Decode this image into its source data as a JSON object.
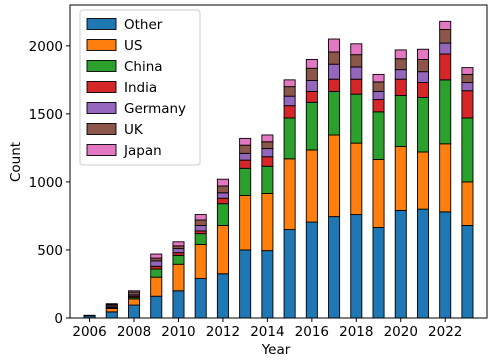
{
  "chart_data": {
    "type": "bar",
    "stacked": true,
    "xlabel": "Year",
    "ylabel": "Count",
    "ylim": [
      0,
      2300
    ],
    "yticks": [
      0,
      500,
      1000,
      1500,
      2000
    ],
    "xticks": [
      2006,
      2008,
      2010,
      2012,
      2014,
      2016,
      2018,
      2020,
      2022
    ],
    "x": [
      2006,
      2007,
      2008,
      2009,
      2010,
      2011,
      2012,
      2013,
      2014,
      2015,
      2016,
      2017,
      2018,
      2019,
      2020,
      2021,
      2022,
      2023
    ],
    "legend_position": "top-left",
    "series": [
      {
        "name": "Other",
        "color": "#1f77b4",
        "values": [
          15,
          45,
          95,
          160,
          200,
          290,
          325,
          500,
          495,
          650,
          705,
          745,
          760,
          665,
          790,
          800,
          780,
          680
        ]
      },
      {
        "name": "US",
        "color": "#ff7f0e",
        "values": [
          5,
          25,
          45,
          140,
          195,
          250,
          355,
          400,
          420,
          520,
          530,
          600,
          525,
          500,
          470,
          420,
          500,
          320
        ]
      },
      {
        "name": "China",
        "color": "#2ca02c",
        "values": [
          0,
          5,
          10,
          60,
          65,
          80,
          160,
          200,
          200,
          300,
          350,
          320,
          360,
          350,
          375,
          400,
          470,
          470
        ]
      },
      {
        "name": "India",
        "color": "#d62728",
        "values": [
          0,
          5,
          10,
          20,
          20,
          20,
          40,
          60,
          70,
          90,
          80,
          90,
          110,
          90,
          120,
          110,
          190,
          200
        ]
      },
      {
        "name": "Germany",
        "color": "#9467bd",
        "values": [
          0,
          10,
          10,
          40,
          30,
          40,
          40,
          50,
          60,
          70,
          80,
          110,
          90,
          60,
          70,
          80,
          80,
          60
        ]
      },
      {
        "name": "UK",
        "color": "#8c564b",
        "values": [
          0,
          10,
          20,
          20,
          20,
          40,
          50,
          60,
          50,
          70,
          90,
          90,
          90,
          70,
          80,
          90,
          100,
          60
        ]
      },
      {
        "name": "Japan",
        "color": "#e377c2",
        "values": [
          0,
          5,
          10,
          30,
          30,
          40,
          50,
          50,
          50,
          50,
          65,
          95,
          80,
          55,
          65,
          75,
          60,
          50
        ]
      }
    ]
  }
}
